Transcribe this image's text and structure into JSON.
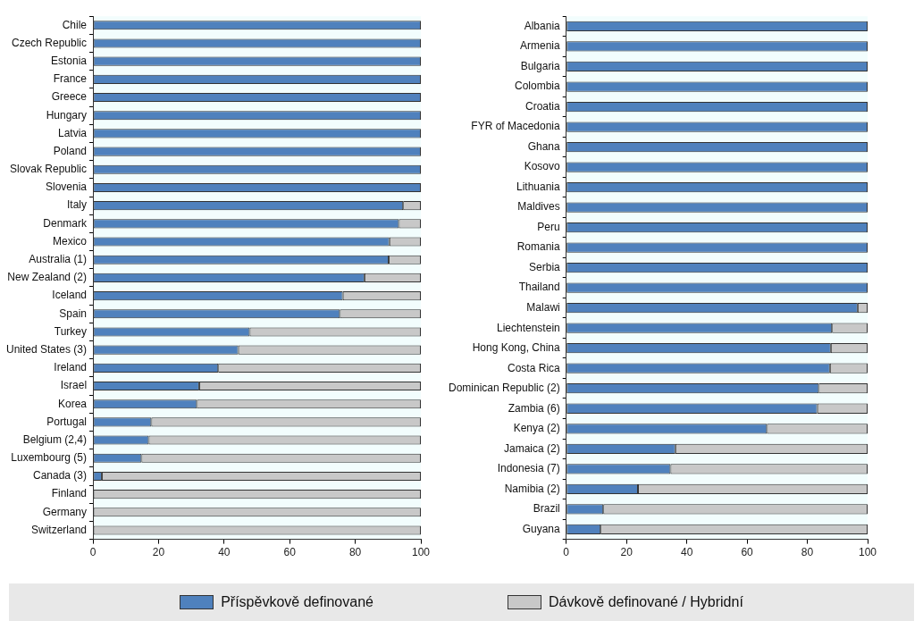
{
  "chart_data": [
    {
      "type": "bar",
      "orientation": "horizontal",
      "stacked": true,
      "legend": "bottom",
      "grid": false,
      "categories": [
        "Chile",
        "Czech Republic",
        "Estonia",
        "France",
        "Greece",
        "Hungary",
        "Latvia",
        "Poland",
        "Slovak Republic",
        "Slovenia",
        "Italy",
        "Denmark",
        "Mexico",
        "Australia (1)",
        "New Zealand (2)",
        "Iceland",
        "Spain",
        "Turkey",
        "United States (3)",
        "Ireland",
        "Israel",
        "Korea",
        "Portugal",
        "Belgium (2,4)",
        "Luxembourg (5)",
        "Canada (3)",
        "Finland",
        "Germany",
        "Switzerland"
      ],
      "series": [
        {
          "name": "Příspěvkově definované",
          "color": "#4f81bd",
          "values": [
            100,
            100,
            100,
            100,
            100,
            100,
            100,
            100,
            100,
            100,
            94.6,
            93.3,
            90.4,
            90.2,
            82.8,
            76.2,
            75.3,
            47.8,
            44.3,
            38.2,
            32.4,
            31.7,
            17.8,
            17,
            14.8,
            2.7,
            0,
            0,
            0
          ]
        },
        {
          "name": "Dávkově definované / Hybridní",
          "color": "#c8c8c8",
          "values": [
            0,
            0,
            0,
            0,
            0,
            0,
            0,
            0,
            0,
            0,
            5.4,
            6.7,
            9.6,
            9.8,
            17.2,
            23.8,
            24.7,
            52.2,
            55.7,
            61.8,
            67.6,
            68.3,
            82.2,
            83,
            85.2,
            97.3,
            100,
            100,
            100
          ]
        }
      ],
      "xlim": [
        0,
        100
      ],
      "xticks": [
        0,
        20,
        40,
        60,
        80,
        100
      ]
    },
    {
      "type": "bar",
      "orientation": "horizontal",
      "stacked": true,
      "grid": false,
      "categories": [
        "Albania",
        "Armenia",
        "Bulgaria",
        "Colombia",
        "Croatia",
        "FYR of Macedonia",
        "Ghana",
        "Kosovo",
        "Lithuania",
        "Maldives",
        "Peru",
        "Romania",
        "Serbia",
        "Thailand",
        "Malawi",
        "Liechtenstein",
        "Hong Kong, China",
        "Costa Rica",
        "Dominican Republic (2)",
        "Zambia (6)",
        "Kenya (2)",
        "Jamaica (2)",
        "Indonesia (7)",
        "Namibia (2)",
        "Brazil",
        "Guyana"
      ],
      "series": [
        {
          "color": "#4f81bd",
          "values": [
            100,
            100,
            100,
            100,
            100,
            100,
            100,
            100,
            100,
            100,
            100,
            100,
            100,
            100,
            96.7,
            88.2,
            87.8,
            87.5,
            83.8,
            83.3,
            66.6,
            36.2,
            34.6,
            23.8,
            12.3,
            11.4
          ]
        },
        {
          "color": "#c8c8c8",
          "values": [
            0,
            0,
            0,
            0,
            0,
            0,
            0,
            0,
            0,
            0,
            0,
            0,
            0,
            0,
            3.3,
            11.8,
            12.2,
            12.5,
            16.2,
            16.7,
            33.4,
            63.8,
            65.4,
            76.2,
            87.7,
            88.6
          ]
        }
      ],
      "xlim": [
        0,
        100
      ],
      "xticks": [
        0,
        20,
        40,
        60,
        80,
        100
      ]
    }
  ]
}
